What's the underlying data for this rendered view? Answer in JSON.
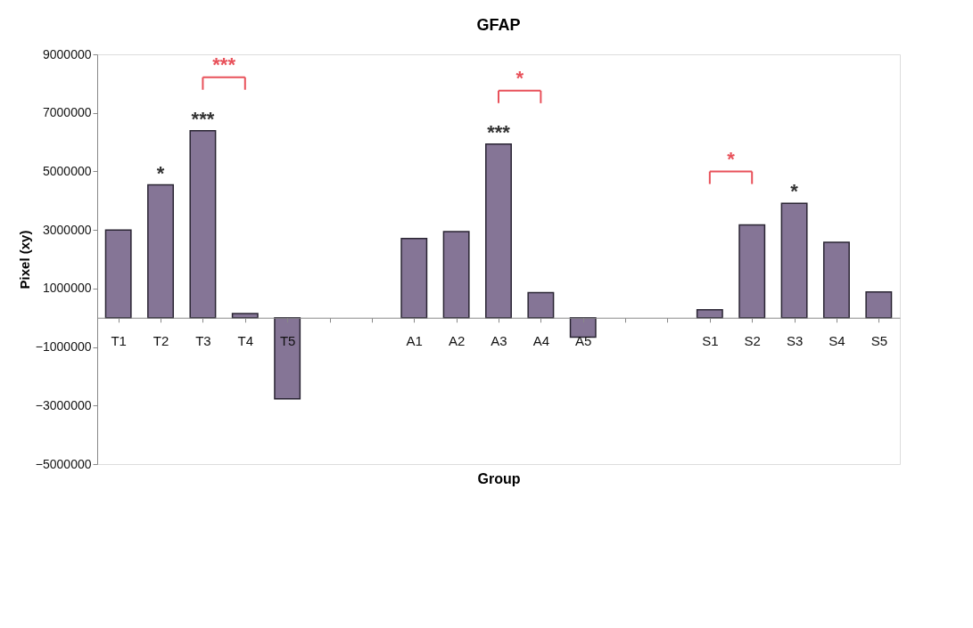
{
  "chart_data": {
    "type": "bar",
    "title": "GFAP",
    "xlabel": "Group",
    "ylabel": "Pixel (xy)",
    "categories": [
      "T1",
      "T2",
      "T3",
      "T4",
      "T5",
      null,
      null,
      "A1",
      "A2",
      "A3",
      "A4",
      "A5",
      null,
      null,
      "S1",
      "S2",
      "S3",
      "S4",
      "S5"
    ],
    "values": [
      3000000,
      4540000,
      6390000,
      140000,
      -2770000,
      null,
      null,
      2710000,
      2940000,
      5930000,
      860000,
      -660000,
      null,
      null,
      270000,
      3170000,
      3910000,
      2580000,
      880000
    ],
    "color": "#857596",
    "ylim": [
      -5000000,
      9000000
    ],
    "yticks": [
      -5000000,
      -3000000,
      -1000000,
      1000000,
      3000000,
      5000000,
      7000000,
      9000000
    ],
    "grid": false,
    "annotations": [
      {
        "text": "*",
        "x": "T2",
        "y": 4540000
      },
      {
        "text": "***",
        "x": "T3",
        "y": 6390000
      },
      {
        "text": "***",
        "x": "A3",
        "y": 5930000
      },
      {
        "text": "*",
        "x": "S3",
        "y": 3910000
      },
      {
        "text": "***",
        "x": "T3",
        "y": 6390000
      },
      {
        "text": "*",
        "x": "A3",
        "y": 5930000
      },
      {
        "text": "*",
        "x": "S2",
        "y": 3170000
      }
    ]
  }
}
